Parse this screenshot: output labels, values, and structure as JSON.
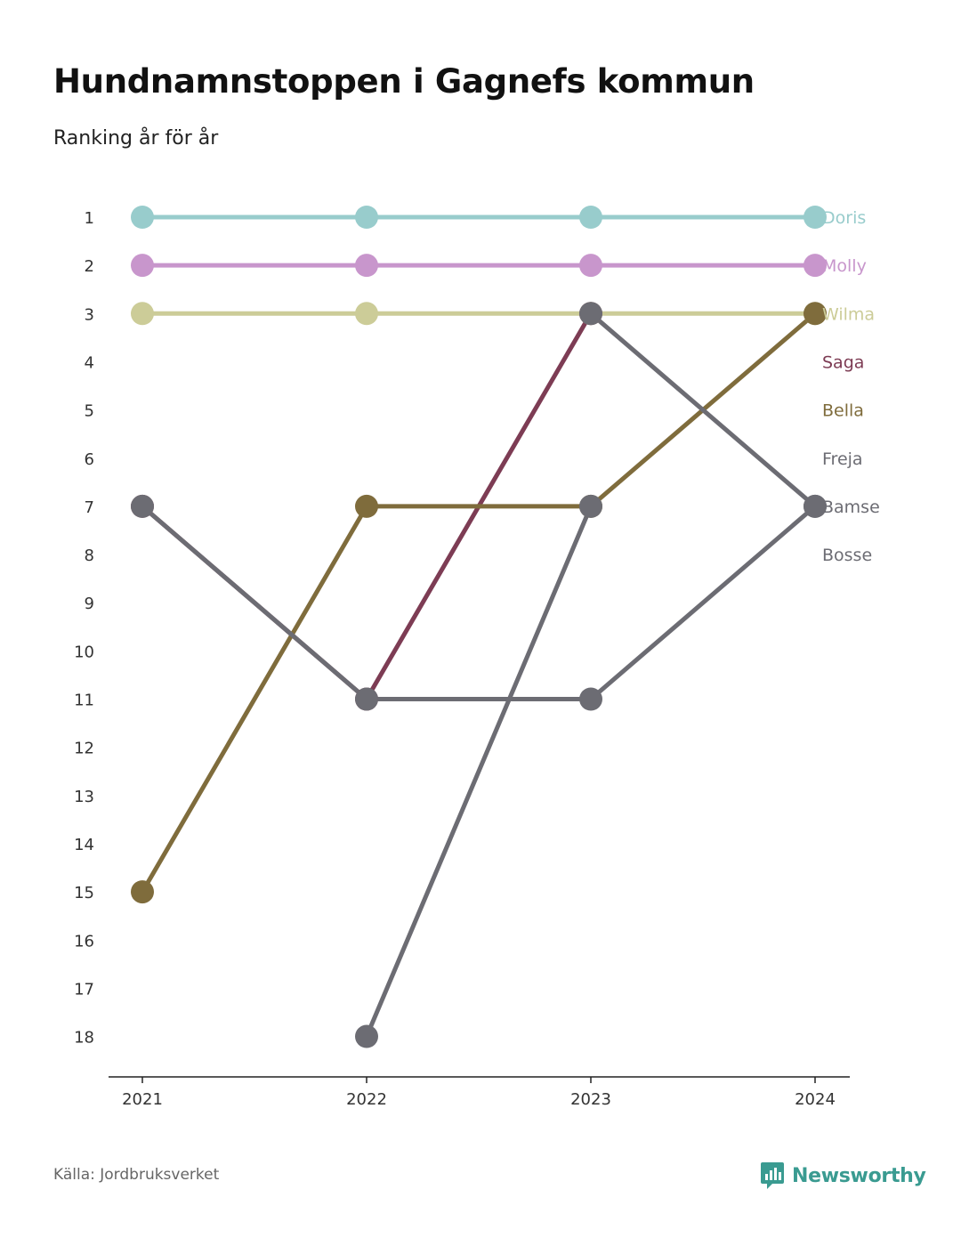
{
  "title": "Hundnamnstoppen i Gagnefs kommun",
  "subtitle": "Ranking år för år",
  "source": "Källa: Jordbruksverket",
  "brand": {
    "name": "Newsworthy",
    "icon": "newsworthy-logo-icon",
    "color": "#3a9b91"
  },
  "chart_data": {
    "type": "line",
    "x": [
      "2021",
      "2022",
      "2023",
      "2024"
    ],
    "y_ticks": [
      "1",
      "2",
      "3",
      "4",
      "5",
      "6",
      "7",
      "8",
      "9",
      "10",
      "11",
      "12",
      "13",
      "14",
      "15",
      "16",
      "17",
      "18"
    ],
    "ylim": [
      1,
      18
    ],
    "y_inverted": true,
    "grid": false,
    "series": [
      {
        "name": "Doris",
        "color": "#98cccc",
        "values": [
          1,
          1,
          1,
          1
        ]
      },
      {
        "name": "Molly",
        "color": "#c896cc",
        "values": [
          2,
          2,
          2,
          2
        ]
      },
      {
        "name": "Wilma",
        "color": "#cccc98",
        "values": [
          3,
          3,
          3,
          3
        ]
      },
      {
        "name": "Saga",
        "color": "#7d3c54",
        "values": [
          7,
          11,
          3,
          null
        ]
      },
      {
        "name": "Bella",
        "color": "#7f6c3c",
        "values": [
          15,
          7,
          7,
          3
        ]
      },
      {
        "name": "Freja",
        "color": "#6c6c73",
        "values": [
          null,
          18,
          7,
          null
        ]
      },
      {
        "name": "Bamse",
        "color": "#6c6c73",
        "values": [
          7,
          11,
          11,
          7
        ]
      },
      {
        "name": "Bosse",
        "color": "#6c6c73",
        "values": [
          null,
          null,
          3,
          7
        ]
      }
    ],
    "end_labels": [
      {
        "name": "Doris",
        "rank": 1
      },
      {
        "name": "Molly",
        "rank": 2
      },
      {
        "name": "Wilma",
        "rank": 3
      },
      {
        "name": "Saga",
        "rank": 4
      },
      {
        "name": "Bella",
        "rank": 5
      },
      {
        "name": "Freja",
        "rank": 6
      },
      {
        "name": "Bamse",
        "rank": 7
      },
      {
        "name": "Bosse",
        "rank": 8
      }
    ]
  }
}
